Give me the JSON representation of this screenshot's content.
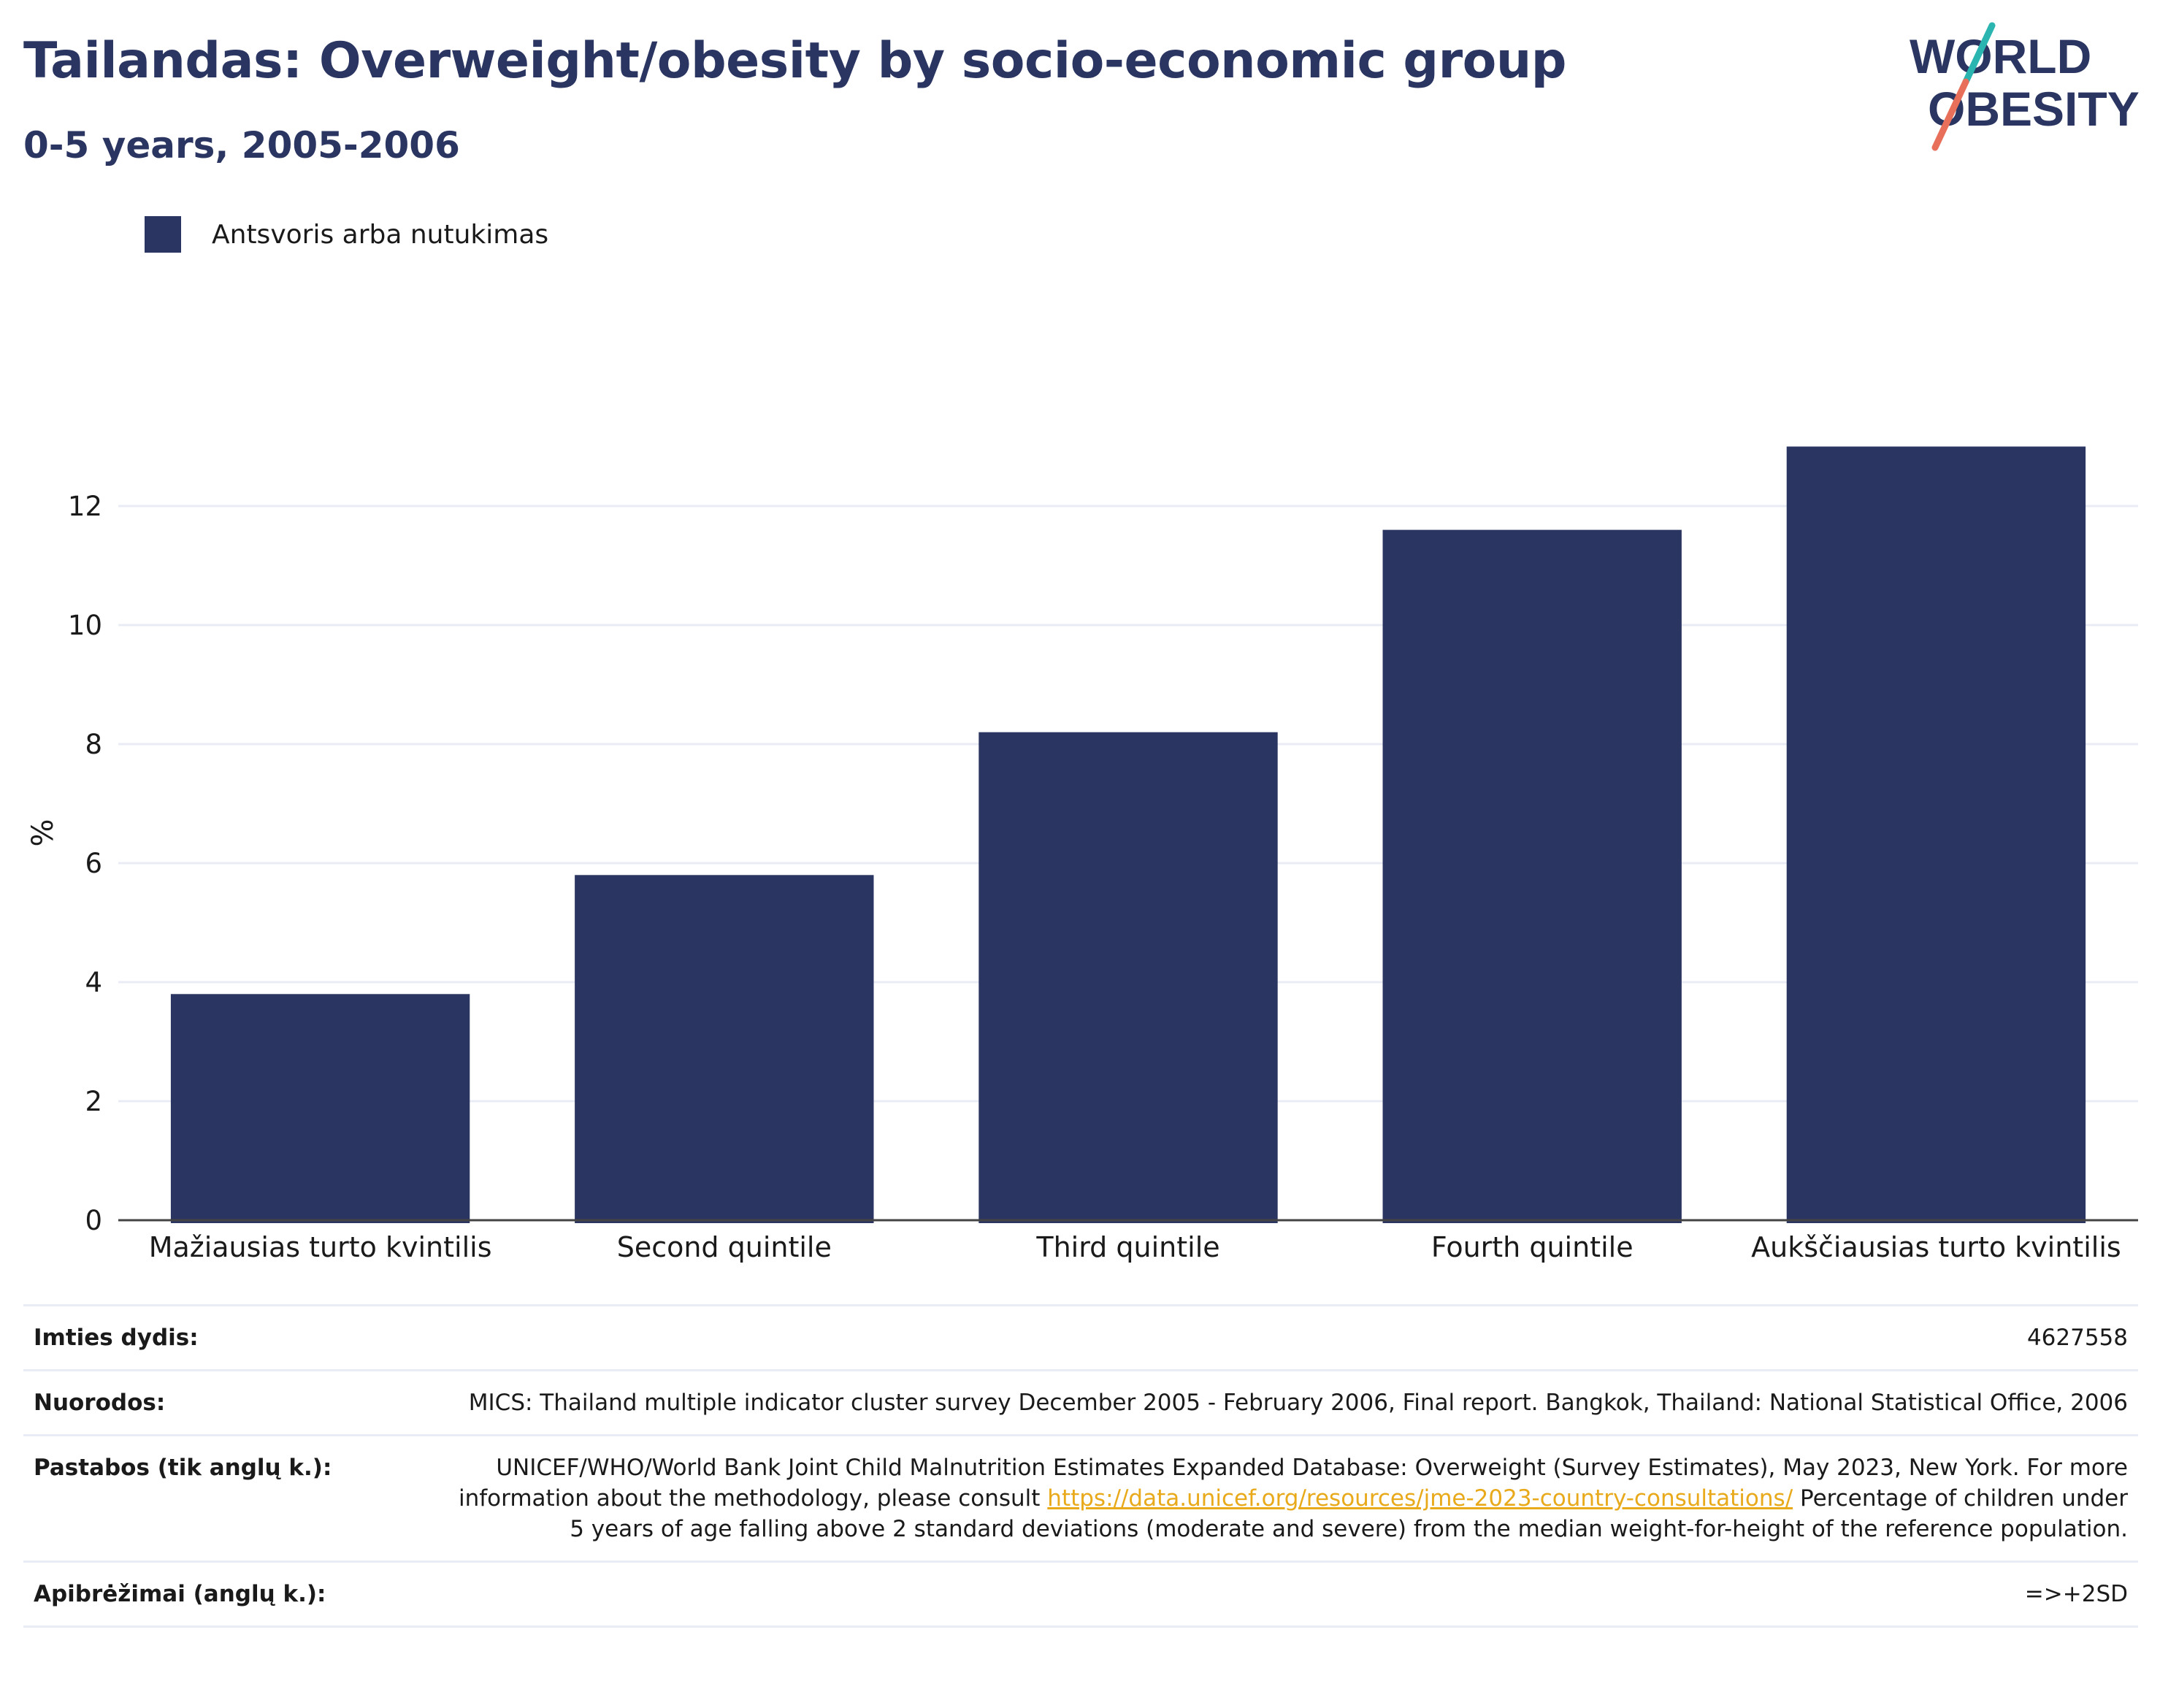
{
  "header": {
    "title": "Tailandas: Overweight/obesity by socio-economic group",
    "subtitle": "0-5 years, 2005-2006"
  },
  "logo": {
    "line1": "WORLD",
    "line2": "OBESITY",
    "colors": {
      "text": "#2a3561",
      "slash_top": "#2bb5b0",
      "slash_bottom": "#e8705a"
    }
  },
  "chart_data": {
    "type": "bar",
    "title": "Tailandas: Overweight/obesity by socio-economic group",
    "subtitle": "0-5 years, 2005-2006",
    "categories": [
      "Mažiausias turto kvintilis",
      "Second quintile",
      "Third quintile",
      "Fourth quintile",
      "Aukščiausias turto kvintilis"
    ],
    "series": [
      {
        "name": "Antsvoris arba nutukimas",
        "values": [
          3.8,
          5.8,
          8.2,
          11.6,
          13.0
        ],
        "color": "#2a3561"
      }
    ],
    "xlabel": "",
    "ylabel": "%",
    "ylim": [
      0,
      14
    ],
    "yticks": [
      0,
      2,
      4,
      6,
      8,
      10,
      12
    ],
    "grid": true,
    "legend_position": "top-left"
  },
  "info": {
    "sample_label": "Imties dydis:",
    "sample_value": "4627558",
    "refs_label": "Nuorodos:",
    "refs_value": "MICS: Thailand multiple indicator cluster survey December 2005 - February 2006, Final report. Bangkok, Thailand: National Statistical Office, 2006",
    "notes_label": "Pastabos (tik anglų k.):",
    "notes_value_1": "UNICEF/WHO/World Bank Joint Child Malnutrition Estimates Expanded Database: Overweight (Survey Estimates), May 2023, New York. For more information about the methodology, please consult ",
    "notes_link": "https://data.unicef.org/resources/jme-2023-country-consultations/",
    "notes_value_2": " Percentage of children under 5 years of age falling above 2 standard deviations (moderate and severe) from the median weight-for-height of the reference population.",
    "defs_label": "Apibrėžimai (anglų k.):",
    "defs_value": "=>+2SD"
  }
}
